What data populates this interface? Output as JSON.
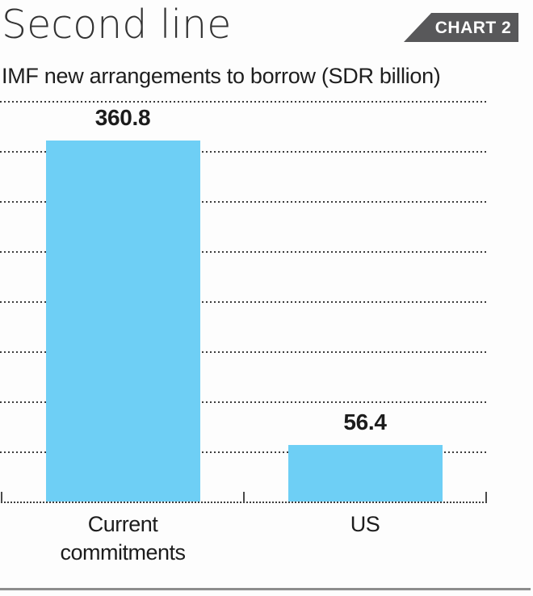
{
  "header": {
    "title": "Second line",
    "badge": "CHART 2",
    "subtitle": "IMF new arrangements to borrow (SDR billion)"
  },
  "colors": {
    "bar": "#6ecff5",
    "badge_bg": "#58585a",
    "badge_text": "#ffffff",
    "gridline": "#3c3c3c",
    "label_text": "#1c1c1c",
    "divider": "#8d8d8d"
  },
  "chart_data": {
    "type": "bar",
    "title": "Second line",
    "subtitle": "IMF new arrangements to borrow (SDR billion)",
    "badge": "CHART 2",
    "categories": [
      "Current commitments",
      "US"
    ],
    "values": [
      360.8,
      56.4
    ],
    "value_labels": [
      "360.8",
      "56.4"
    ],
    "ylabel": "SDR billion",
    "ylim": [
      0,
      400
    ],
    "grid_step": 50,
    "gridlines": "horizontal dotted",
    "legend": false,
    "bar_color": "#6ecff5"
  }
}
